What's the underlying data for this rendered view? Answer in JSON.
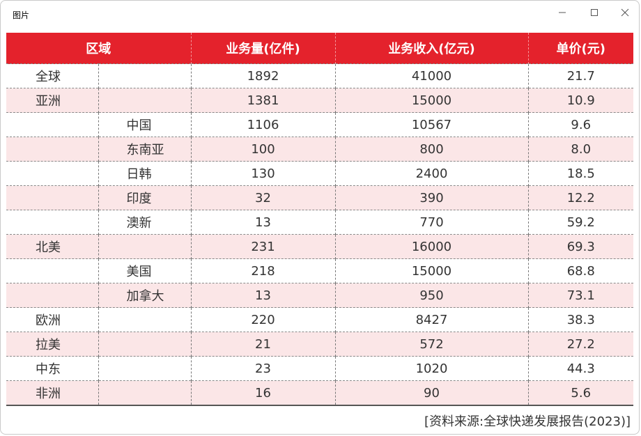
{
  "window": {
    "title": "图片",
    "controls": {
      "minimize_icon": "minimize-icon",
      "maximize_icon": "maximize-icon",
      "close_icon": "close-icon"
    }
  },
  "table": {
    "headers": [
      "区域",
      "业务量(亿件)",
      "业务收入(亿元)",
      "单价(元)"
    ],
    "rows": [
      {
        "region": "全球",
        "sub": "",
        "volume": "1892",
        "revenue": "41000",
        "price": "21.7"
      },
      {
        "region": "亚洲",
        "sub": "",
        "volume": "1381",
        "revenue": "15000",
        "price": "10.9"
      },
      {
        "region": "",
        "sub": "中国",
        "volume": "1106",
        "revenue": "10567",
        "price": "9.6"
      },
      {
        "region": "",
        "sub": "东南亚",
        "volume": "100",
        "revenue": "800",
        "price": "8.0"
      },
      {
        "region": "",
        "sub": "日韩",
        "volume": "130",
        "revenue": "2400",
        "price": "18.5"
      },
      {
        "region": "",
        "sub": "印度",
        "volume": "32",
        "revenue": "390",
        "price": "12.2"
      },
      {
        "region": "",
        "sub": "澳新",
        "volume": "13",
        "revenue": "770",
        "price": "59.2"
      },
      {
        "region": "北美",
        "sub": "",
        "volume": "231",
        "revenue": "16000",
        "price": "69.3"
      },
      {
        "region": "",
        "sub": "美国",
        "volume": "218",
        "revenue": "15000",
        "price": "68.8"
      },
      {
        "region": "",
        "sub": "加拿大",
        "volume": "13",
        "revenue": "950",
        "price": "73.1"
      },
      {
        "region": "欧洲",
        "sub": "",
        "volume": "220",
        "revenue": "8427",
        "price": "38.3"
      },
      {
        "region": "拉美",
        "sub": "",
        "volume": "21",
        "revenue": "572",
        "price": "27.2"
      },
      {
        "region": "中东",
        "sub": "",
        "volume": "23",
        "revenue": "1020",
        "price": "44.3"
      },
      {
        "region": "非洲",
        "sub": "",
        "volume": "16",
        "revenue": "90",
        "price": "5.6"
      }
    ]
  },
  "source": "[资料来源:全球快递发展报告(2023)]",
  "colors": {
    "header_bg": "#e4222c",
    "stripe_bg": "#fbe6e7"
  }
}
